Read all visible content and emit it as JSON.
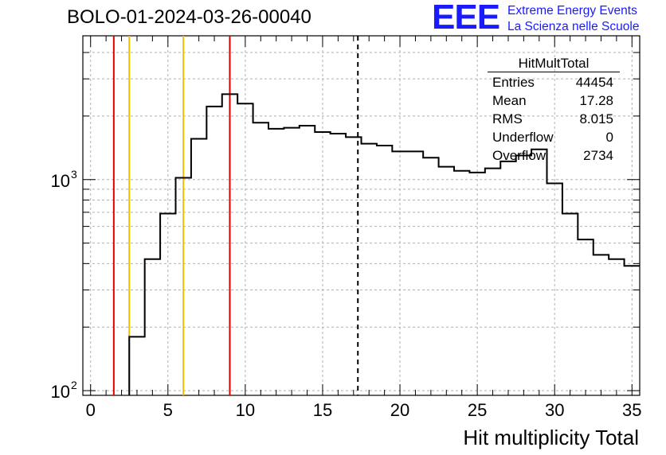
{
  "title": "BOLO-01-2024-03-26-00040",
  "logo": {
    "mark": "EEE",
    "line1": "Extreme Energy Events",
    "line2": "La Scienza nelle Scuole",
    "color": "#1a1aff"
  },
  "stats_box": {
    "title": "HitMultTotal",
    "rows": [
      {
        "label": "Entries",
        "value": "44454"
      },
      {
        "label": "Mean",
        "value": "17.28"
      },
      {
        "label": "RMS",
        "value": "8.015"
      },
      {
        "label": "Underflow",
        "value": "0"
      },
      {
        "label": "Overflow",
        "value": "2734"
      }
    ]
  },
  "chart_data": {
    "type": "histogram",
    "xlabel": "Hit multiplicity Total",
    "ylabel": "",
    "xlim": [
      -0.5,
      35.5
    ],
    "ylim": [
      95,
      4800
    ],
    "y_scale": "log",
    "grid": true,
    "x_ticks": [
      0,
      5,
      10,
      15,
      20,
      25,
      30,
      35
    ],
    "y_tick_labels": [
      {
        "value": 100,
        "label": "10",
        "exp": "2"
      },
      {
        "value": 1000,
        "label": "10",
        "exp": "3"
      }
    ],
    "bin_edges": [
      2.5,
      3.5,
      4.5,
      5.5,
      6.5,
      7.5,
      8.5,
      9.5,
      10.5,
      11.5,
      12.5,
      13.5,
      14.5,
      15.5,
      16.5,
      17.5,
      18.5,
      19.5,
      20.5,
      21.5,
      22.5,
      23.5,
      24.5,
      25.5,
      26.5,
      27.5,
      28.5,
      29.5,
      30.5,
      31.5,
      32.5,
      33.5,
      34.5,
      35.5
    ],
    "counts": [
      180,
      420,
      690,
      1020,
      1560,
      2220,
      2540,
      2290,
      1860,
      1740,
      1760,
      1800,
      1680,
      1650,
      1590,
      1480,
      1450,
      1360,
      1360,
      1270,
      1150,
      1100,
      1080,
      1130,
      1220,
      1300,
      1390,
      960,
      690,
      520,
      440,
      420,
      390
    ],
    "vertical_lines": [
      {
        "x": 1.5,
        "color": "#e00000",
        "style": "solid"
      },
      {
        "x": 2.5,
        "color": "#f0c000",
        "style": "solid"
      },
      {
        "x": 6.0,
        "color": "#f0c000",
        "style": "solid"
      },
      {
        "x": 9.0,
        "color": "#e00000",
        "style": "solid"
      },
      {
        "x": 17.28,
        "color": "#000000",
        "style": "dashed"
      }
    ]
  }
}
